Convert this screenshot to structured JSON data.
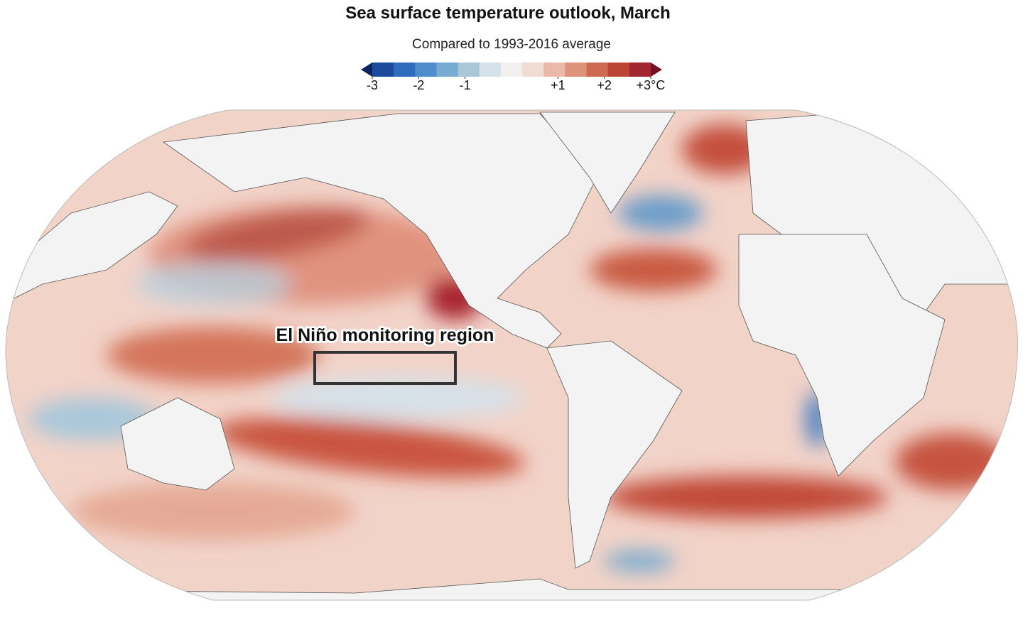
{
  "header": {
    "title": "Sea surface temperature outlook, March",
    "subtitle": "Compared to 1993-2016 average"
  },
  "legend": {
    "range": [
      -3,
      3
    ],
    "ticks": [
      -3,
      -2,
      -1,
      {
        "value": 1,
        "label": "+1"
      },
      {
        "value": 2,
        "label": "+2"
      },
      {
        "value": 3,
        "label": "+3°C"
      }
    ],
    "colors": [
      "#0c2461",
      "#1c4a9c",
      "#2f6cbd",
      "#4f8ccb",
      "#78abd0",
      "#a8c8da",
      "#d6e2ea",
      "#f1f0ef",
      "#f1dcd3",
      "#eab9a8",
      "#df927b",
      "#cf6a52",
      "#bd4536",
      "#a12630",
      "#721222"
    ]
  },
  "annotation": {
    "label": "El Niño monitoring region"
  }
}
